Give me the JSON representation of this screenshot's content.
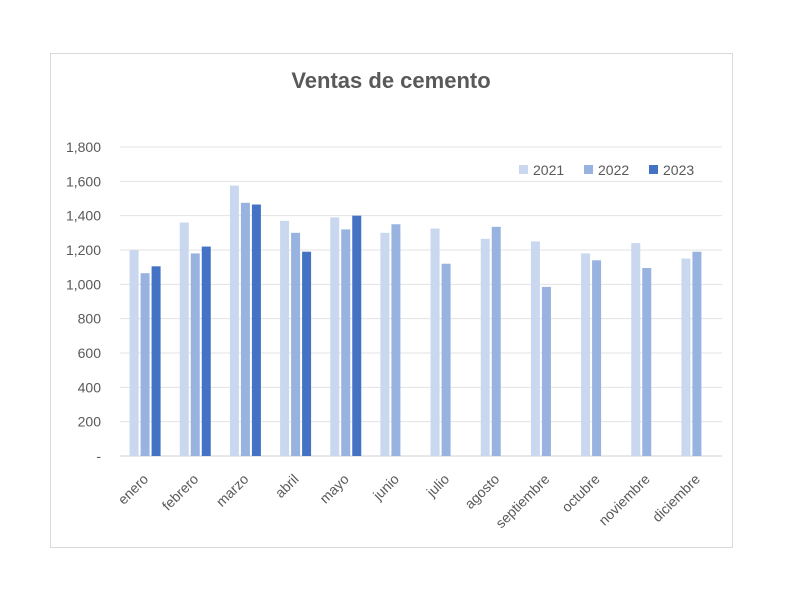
{
  "chart_data": {
    "type": "bar",
    "title": "Ventas de cemento",
    "xlabel": "",
    "ylabel": "",
    "categories": [
      "enero",
      "febrero",
      "marzo",
      "abril",
      "mayo",
      "junio",
      "julio",
      "agosto",
      "septiembre",
      "octubre",
      "noviembre",
      "diciembre"
    ],
    "series": [
      {
        "name": "2021",
        "color": "#c9d7ef",
        "values": [
          1200,
          1360,
          1575,
          1370,
          1390,
          1300,
          1325,
          1265,
          1250,
          1180,
          1240,
          1150
        ]
      },
      {
        "name": "2022",
        "color": "#98b3e0",
        "values": [
          1065,
          1180,
          1475,
          1300,
          1320,
          1350,
          1120,
          1335,
          985,
          1140,
          1095,
          1190
        ]
      },
      {
        "name": "2023",
        "color": "#4472c4",
        "values": [
          1105,
          1220,
          1465,
          1190,
          1400,
          null,
          null,
          null,
          null,
          null,
          null,
          null
        ]
      }
    ],
    "ylim": [
      0,
      1800
    ],
    "yticks": [
      "-",
      "200",
      "400",
      "600",
      "800",
      "1,000",
      "1,200",
      "1,400",
      "1,600",
      "1,800"
    ],
    "grid": true,
    "legend_position": "top-right"
  }
}
